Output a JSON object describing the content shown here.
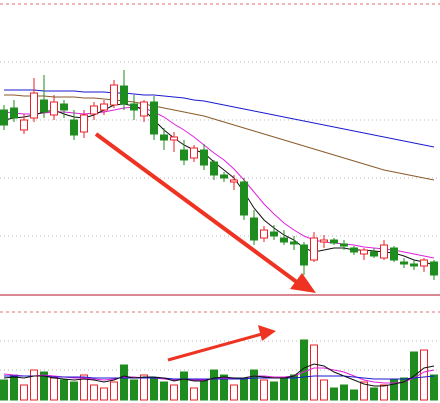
{
  "chart_data": [
    {
      "type": "candlestick",
      "ylim": [
        5,
        300
      ],
      "up_color": "#e8202a",
      "down_color": "#1e8c1e",
      "open": [
        190,
        192,
        170,
        182,
        200,
        185,
        196,
        180,
        168,
        186,
        190,
        195,
        214,
        196,
        184,
        198,
        165,
        160,
        150,
        142,
        150,
        138,
        125,
        118,
        118,
        82,
        62,
        68,
        62,
        58,
        55,
        40,
        58,
        60,
        56,
        52,
        46,
        48,
        42,
        52,
        38,
        36,
        34,
        38
      ],
      "high": [
        195,
        200,
        186,
        222,
        225,
        205,
        200,
        190,
        190,
        198,
        200,
        220,
        230,
        205,
        200,
        204,
        172,
        168,
        160,
        155,
        156,
        140,
        128,
        125,
        122,
        90,
        74,
        75,
        70,
        64,
        58,
        68,
        65,
        62,
        60,
        54,
        52,
        52,
        60,
        54,
        42,
        40,
        42,
        40
      ],
      "low": [
        170,
        178,
        166,
        178,
        182,
        180,
        182,
        160,
        162,
        180,
        185,
        192,
        190,
        180,
        178,
        160,
        150,
        148,
        135,
        138,
        130,
        120,
        118,
        110,
        80,
        55,
        58,
        60,
        55,
        50,
        25,
        38,
        52,
        55,
        50,
        45,
        40,
        42,
        40,
        38,
        32,
        30,
        28,
        20
      ],
      "close": [
        175,
        182,
        180,
        207,
        188,
        198,
        190,
        165,
        185,
        194,
        196,
        215,
        196,
        190,
        198,
        166,
        160,
        163,
        140,
        152,
        135,
        125,
        122,
        120,
        85,
        60,
        70,
        64,
        58,
        56,
        35,
        62,
        60,
        57,
        54,
        48,
        50,
        44,
        55,
        40,
        36,
        34,
        40,
        25
      ],
      "series": [
        {
          "color": "#1a1ad0",
          "values": [
            210,
            210,
            210,
            210,
            209,
            209,
            209,
            209,
            208,
            208,
            208,
            207,
            207,
            206,
            205,
            205,
            204,
            203,
            202,
            200,
            199,
            197,
            195,
            193,
            191,
            189,
            187,
            185,
            183,
            181,
            179,
            177,
            175,
            173,
            171,
            169,
            167,
            165,
            163,
            161,
            159,
            157,
            155,
            153
          ]
        },
        {
          "color": "#8a5a2a",
          "values": [
            205,
            205,
            204,
            204,
            204,
            203,
            203,
            203,
            202,
            202,
            201,
            200,
            199,
            198,
            196,
            194,
            192,
            190,
            188,
            186,
            184,
            181,
            178,
            175,
            172,
            169,
            166,
            163,
            160,
            157,
            154,
            151,
            148,
            145,
            142,
            139,
            136,
            133,
            130,
            128,
            126,
            124,
            122,
            120
          ]
        },
        {
          "color": "#e020e0",
          "values": [
            188,
            187,
            186,
            186,
            187,
            188,
            188,
            187,
            186,
            187,
            188,
            190,
            192,
            193,
            192,
            188,
            183,
            176,
            170,
            163,
            155,
            147,
            140,
            131,
            120,
            108,
            96,
            86,
            77,
            70,
            64,
            60,
            58,
            57,
            56,
            55,
            53,
            52,
            51,
            50,
            48,
            46,
            44,
            42
          ]
        },
        {
          "color": "#111111",
          "values": [
            180,
            182,
            183,
            185,
            188,
            190,
            186,
            183,
            182,
            185,
            190,
            195,
            196,
            194,
            190,
            180,
            170,
            162,
            155,
            150,
            147,
            138,
            130,
            122,
            108,
            92,
            80,
            72,
            65,
            60,
            52,
            48,
            50,
            52,
            52,
            50,
            50,
            49,
            48,
            47,
            44,
            40,
            38,
            35
          ]
        }
      ]
    },
    {
      "type": "bar",
      "ylim": [
        0,
        90
      ],
      "values": [
        20,
        25,
        15,
        30,
        28,
        22,
        20,
        18,
        25,
        15,
        12,
        18,
        35,
        20,
        25,
        22,
        18,
        15,
        28,
        12,
        20,
        30,
        25,
        15,
        22,
        30,
        20,
        18,
        22,
        25,
        60,
        55,
        20,
        12,
        15,
        10,
        18,
        12,
        15,
        20,
        22,
        48,
        50,
        25
      ],
      "series": [
        {
          "color": "#e020e0",
          "values": [
            26,
            25,
            24,
            24,
            25,
            24,
            23,
            22,
            22,
            21,
            20,
            21,
            23,
            23,
            22,
            22,
            21,
            20,
            21,
            20,
            20,
            21,
            22,
            22,
            22,
            24,
            24,
            23,
            23,
            24,
            28,
            32,
            32,
            30,
            28,
            24,
            20,
            18,
            17,
            17,
            18,
            22,
            28,
            30
          ]
        },
        {
          "color": "#1a1ad0",
          "values": [
            24,
            24,
            24,
            24,
            24,
            23,
            23,
            23,
            23,
            22,
            22,
            22,
            22,
            22,
            22,
            22,
            22,
            21,
            21,
            21,
            21,
            21,
            21,
            21,
            21,
            22,
            22,
            22,
            22,
            22,
            23,
            24,
            24,
            24,
            24,
            23,
            22,
            21,
            21,
            21,
            21,
            22,
            23,
            24
          ]
        },
        {
          "color": "#111111",
          "values": [
            22,
            23,
            22,
            24,
            24,
            22,
            21,
            20,
            21,
            20,
            18,
            20,
            24,
            22,
            23,
            23,
            22,
            19,
            21,
            19,
            19,
            22,
            23,
            22,
            22,
            24,
            23,
            22,
            22,
            24,
            32,
            36,
            34,
            28,
            24,
            20,
            16,
            14,
            14,
            16,
            18,
            24,
            32,
            34
          ]
        }
      ]
    }
  ]
}
